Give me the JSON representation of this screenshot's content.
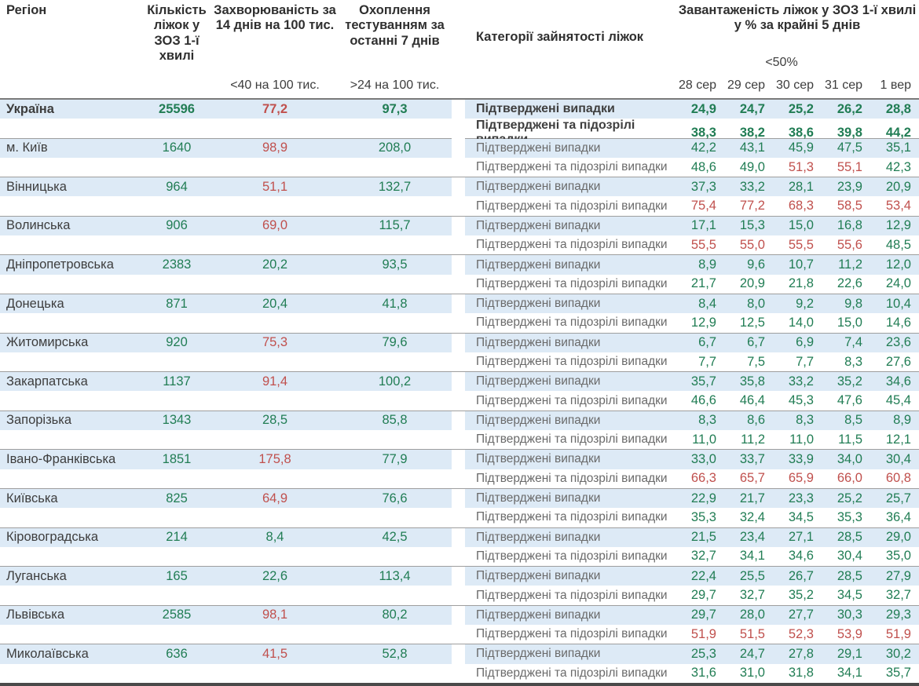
{
  "header": {
    "region": "Регіон",
    "beds": "Кількість ліжок у ЗОЗ 1-ї хвилі",
    "incidence": "Захворюваність за 14 днів на 100 тис.",
    "testing": "Охоплення тестуванням за останні 7 днів",
    "categories": "Категорії зайнятості ліжок",
    "load": "Завантаженість ліжок у ЗОЗ 1-ї хвилі у % за крайні 5 днів",
    "incidence_threshold": "<40 на 100 тис.",
    "testing_threshold": ">24 на 100 тис.",
    "load_threshold": "<50%",
    "dates": [
      "28 сер",
      "29 сер",
      "30 сер",
      "31 сер",
      "1 вер"
    ]
  },
  "labels": {
    "confirmed": "Підтверджені випадки",
    "confirmed_suspected": "Підтверджені та підозрілі випадки"
  },
  "colors": {
    "green": "#217d54",
    "red": "#c0504d",
    "row_stripe": "#ddeaf6"
  },
  "regions": [
    {
      "name": "Україна",
      "bold": true,
      "beds": "25596",
      "incidence": "77,2",
      "incidence_red": true,
      "testing": "97,3",
      "confirmed": {
        "values": [
          "24,9",
          "24,7",
          "25,2",
          "26,2",
          "28,8"
        ],
        "red": [
          0,
          0,
          0,
          0,
          0
        ]
      },
      "confirmed_suspected": {
        "values": [
          "38,3",
          "38,2",
          "38,6",
          "39,8",
          "44,2"
        ],
        "red": [
          0,
          0,
          0,
          0,
          0
        ]
      }
    },
    {
      "name": "м. Київ",
      "bold": false,
      "beds": "1640",
      "incidence": "98,9",
      "incidence_red": true,
      "testing": "208,0",
      "confirmed": {
        "values": [
          "42,2",
          "43,1",
          "45,9",
          "47,5",
          "35,1"
        ],
        "red": [
          0,
          0,
          0,
          0,
          0
        ]
      },
      "confirmed_suspected": {
        "values": [
          "48,6",
          "49,0",
          "51,3",
          "55,1",
          "42,3"
        ],
        "red": [
          0,
          0,
          1,
          1,
          0
        ]
      }
    },
    {
      "name": "Вінницька",
      "bold": false,
      "beds": "964",
      "incidence": "51,1",
      "incidence_red": true,
      "testing": "132,7",
      "confirmed": {
        "values": [
          "37,3",
          "33,2",
          "28,1",
          "23,9",
          "20,9"
        ],
        "red": [
          0,
          0,
          0,
          0,
          0
        ]
      },
      "confirmed_suspected": {
        "values": [
          "75,4",
          "77,2",
          "68,3",
          "58,5",
          "53,4"
        ],
        "red": [
          1,
          1,
          1,
          1,
          1
        ]
      }
    },
    {
      "name": "Волинська",
      "bold": false,
      "beds": "906",
      "incidence": "69,0",
      "incidence_red": true,
      "testing": "115,7",
      "confirmed": {
        "values": [
          "17,1",
          "15,3",
          "15,0",
          "16,8",
          "12,9"
        ],
        "red": [
          0,
          0,
          0,
          0,
          0
        ]
      },
      "confirmed_suspected": {
        "values": [
          "55,5",
          "55,0",
          "55,5",
          "55,6",
          "48,5"
        ],
        "red": [
          1,
          1,
          1,
          1,
          0
        ]
      }
    },
    {
      "name": "Дніпропетровська",
      "bold": false,
      "beds": "2383",
      "incidence": "20,2",
      "incidence_red": false,
      "testing": "93,5",
      "confirmed": {
        "values": [
          "8,9",
          "9,6",
          "10,7",
          "11,2",
          "12,0"
        ],
        "red": [
          0,
          0,
          0,
          0,
          0
        ]
      },
      "confirmed_suspected": {
        "values": [
          "21,7",
          "20,9",
          "21,8",
          "22,6",
          "24,0"
        ],
        "red": [
          0,
          0,
          0,
          0,
          0
        ]
      }
    },
    {
      "name": "Донецька",
      "bold": false,
      "beds": "871",
      "incidence": "20,4",
      "incidence_red": false,
      "testing": "41,8",
      "confirmed": {
        "values": [
          "8,4",
          "8,0",
          "9,2",
          "9,8",
          "10,4"
        ],
        "red": [
          0,
          0,
          0,
          0,
          0
        ]
      },
      "confirmed_suspected": {
        "values": [
          "12,9",
          "12,5",
          "14,0",
          "15,0",
          "14,6"
        ],
        "red": [
          0,
          0,
          0,
          0,
          0
        ]
      }
    },
    {
      "name": "Житомирська",
      "bold": false,
      "beds": "920",
      "incidence": "75,3",
      "incidence_red": true,
      "testing": "79,6",
      "confirmed": {
        "values": [
          "6,7",
          "6,7",
          "6,9",
          "7,4",
          "23,6"
        ],
        "red": [
          0,
          0,
          0,
          0,
          0
        ]
      },
      "confirmed_suspected": {
        "values": [
          "7,7",
          "7,5",
          "7,7",
          "8,3",
          "27,6"
        ],
        "red": [
          0,
          0,
          0,
          0,
          0
        ]
      }
    },
    {
      "name": "Закарпатська",
      "bold": false,
      "beds": "1137",
      "incidence": "91,4",
      "incidence_red": true,
      "testing": "100,2",
      "confirmed": {
        "values": [
          "35,7",
          "35,8",
          "33,2",
          "35,2",
          "34,6"
        ],
        "red": [
          0,
          0,
          0,
          0,
          0
        ]
      },
      "confirmed_suspected": {
        "values": [
          "46,6",
          "46,4",
          "45,3",
          "47,6",
          "45,4"
        ],
        "red": [
          0,
          0,
          0,
          0,
          0
        ]
      }
    },
    {
      "name": "Запорізька",
      "bold": false,
      "beds": "1343",
      "incidence": "28,5",
      "incidence_red": false,
      "testing": "85,8",
      "confirmed": {
        "values": [
          "8,3",
          "8,6",
          "8,3",
          "8,5",
          "8,9"
        ],
        "red": [
          0,
          0,
          0,
          0,
          0
        ]
      },
      "confirmed_suspected": {
        "values": [
          "11,0",
          "11,2",
          "11,0",
          "11,5",
          "12,1"
        ],
        "red": [
          0,
          0,
          0,
          0,
          0
        ]
      }
    },
    {
      "name": "Івано-Франківська",
      "bold": false,
      "beds": "1851",
      "incidence": "175,8",
      "incidence_red": true,
      "testing": "77,9",
      "confirmed": {
        "values": [
          "33,0",
          "33,7",
          "33,9",
          "34,0",
          "30,4"
        ],
        "red": [
          0,
          0,
          0,
          0,
          0
        ]
      },
      "confirmed_suspected": {
        "values": [
          "66,3",
          "65,7",
          "65,9",
          "66,0",
          "60,8"
        ],
        "red": [
          1,
          1,
          1,
          1,
          1
        ]
      }
    },
    {
      "name": "Київська",
      "bold": false,
      "beds": "825",
      "incidence": "64,9",
      "incidence_red": true,
      "testing": "76,6",
      "confirmed": {
        "values": [
          "22,9",
          "21,7",
          "23,3",
          "25,2",
          "25,7"
        ],
        "red": [
          0,
          0,
          0,
          0,
          0
        ]
      },
      "confirmed_suspected": {
        "values": [
          "35,3",
          "32,4",
          "34,5",
          "35,3",
          "36,4"
        ],
        "red": [
          0,
          0,
          0,
          0,
          0
        ]
      }
    },
    {
      "name": "Кіровоградська",
      "bold": false,
      "beds": "214",
      "incidence": "8,4",
      "incidence_red": false,
      "testing": "42,5",
      "confirmed": {
        "values": [
          "21,5",
          "23,4",
          "27,1",
          "28,5",
          "29,0"
        ],
        "red": [
          0,
          0,
          0,
          0,
          0
        ]
      },
      "confirmed_suspected": {
        "values": [
          "32,7",
          "34,1",
          "34,6",
          "30,4",
          "35,0"
        ],
        "red": [
          0,
          0,
          0,
          0,
          0
        ]
      }
    },
    {
      "name": "Луганська",
      "bold": false,
      "beds": "165",
      "incidence": "22,6",
      "incidence_red": false,
      "testing": "113,4",
      "confirmed": {
        "values": [
          "22,4",
          "25,5",
          "26,7",
          "28,5",
          "27,9"
        ],
        "red": [
          0,
          0,
          0,
          0,
          0
        ]
      },
      "confirmed_suspected": {
        "values": [
          "29,7",
          "32,7",
          "35,2",
          "34,5",
          "32,7"
        ],
        "red": [
          0,
          0,
          0,
          0,
          0
        ]
      }
    },
    {
      "name": "Львівська",
      "bold": false,
      "beds": "2585",
      "incidence": "98,1",
      "incidence_red": true,
      "testing": "80,2",
      "confirmed": {
        "values": [
          "29,7",
          "28,0",
          "27,7",
          "30,3",
          "29,3"
        ],
        "red": [
          0,
          0,
          0,
          0,
          0
        ]
      },
      "confirmed_suspected": {
        "values": [
          "51,9",
          "51,5",
          "52,3",
          "53,9",
          "51,9"
        ],
        "red": [
          1,
          1,
          1,
          1,
          1
        ]
      }
    },
    {
      "name": "Миколаївська",
      "bold": false,
      "beds": "636",
      "incidence": "41,5",
      "incidence_red": true,
      "testing": "52,8",
      "confirmed": {
        "values": [
          "25,3",
          "24,7",
          "27,8",
          "29,1",
          "30,2"
        ],
        "red": [
          0,
          0,
          0,
          0,
          0
        ]
      },
      "confirmed_suspected": {
        "values": [
          "31,6",
          "31,0",
          "31,8",
          "34,1",
          "35,7"
        ],
        "red": [
          0,
          0,
          0,
          0,
          0
        ]
      }
    }
  ]
}
